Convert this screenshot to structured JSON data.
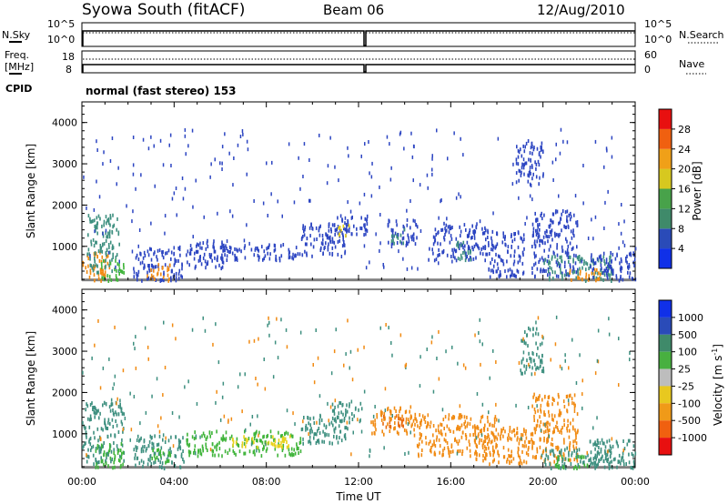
{
  "header": {
    "station": "Syowa South (fitACF)",
    "beam": "Beam 06",
    "date": "12/Aug/2010"
  },
  "status_panels": {
    "nsky_label": "N.Sky",
    "nsky_ticks": [
      "10^5",
      "10^0"
    ],
    "nsearch_label": "N.Search",
    "nsearch_ticks": [
      "10^5",
      "10^0"
    ],
    "freq_label_line1": "Freq.",
    "freq_label_line2": "[MHz]",
    "freq_ticks": [
      "18",
      "8"
    ],
    "nave_label": "Nave",
    "nave_ticks": [
      "60",
      "0"
    ],
    "cpid_label": "CPID",
    "cpid_text": "normal (fast stereo) 153"
  },
  "colors": {
    "blue": "#2c45c2",
    "darkblue": "#1e3aa8",
    "teal": "#3d8f7f",
    "green": "#3fb43a",
    "yellow": "#e9d21c",
    "orange": "#f18a12",
    "darkorange": "#e86a10",
    "red": "#e3131a",
    "grey": "#bdbdbd",
    "ground": "#808080"
  },
  "chart_data": [
    {
      "type": "heatmap",
      "title": "Power",
      "xlabel": "",
      "ylabel": "Slant Range [km]",
      "x_ticks": [
        "00:00",
        "04:00",
        "08:00",
        "12:00",
        "16:00",
        "20:00",
        "00:00"
      ],
      "y_ticks": [
        1000,
        2000,
        3000,
        4000
      ],
      "ylim": [
        180,
        4500
      ],
      "colorbar_label": "Power [dB]",
      "colorbar_ticks": [
        4,
        8,
        12,
        16,
        20,
        24,
        28
      ],
      "colorbar_colors": [
        "#1030e8",
        "#2a4bb8",
        "#3f8a6a",
        "#48a24a",
        "#d7c81f",
        "#f0a018",
        "#f06010",
        "#e81010"
      ],
      "regions": [
        {
          "t": [
            0.0,
            1.2
          ],
          "r": [
            200,
            900
          ],
          "c": "orange"
        },
        {
          "t": [
            0.2,
            1.6
          ],
          "r": [
            400,
            1800
          ],
          "c": "teal"
        },
        {
          "t": [
            0.8,
            1.8
          ],
          "r": [
            200,
            700
          ],
          "c": "green"
        },
        {
          "t": [
            2.2,
            4.4
          ],
          "r": [
            200,
            1000
          ],
          "c": "blue"
        },
        {
          "t": [
            2.8,
            3.8
          ],
          "r": [
            200,
            600
          ],
          "c": "orange"
        },
        {
          "t": [
            4.5,
            6.2
          ],
          "r": [
            500,
            1200
          ],
          "c": "blue"
        },
        {
          "t": [
            6.0,
            9.5
          ],
          "r": [
            700,
            1100
          ],
          "c": "blue"
        },
        {
          "t": [
            9.5,
            11.5
          ],
          "r": [
            800,
            1600
          ],
          "c": "blue"
        },
        {
          "t": [
            10.8,
            12.4
          ],
          "r": [
            1300,
            1800
          ],
          "c": "blue"
        },
        {
          "t": [
            11.1,
            11.6
          ],
          "r": [
            1300,
            1600
          ],
          "c": "yellow"
        },
        {
          "t": [
            13.2,
            14.6
          ],
          "r": [
            1100,
            1700
          ],
          "c": "blue"
        },
        {
          "t": [
            13.4,
            14.0
          ],
          "r": [
            1100,
            1500
          ],
          "c": "teal"
        },
        {
          "t": [
            15.0,
            17.5
          ],
          "r": [
            700,
            1600
          ],
          "c": "blue"
        },
        {
          "t": [
            16.2,
            16.9
          ],
          "r": [
            700,
            1200
          ],
          "c": "teal"
        },
        {
          "t": [
            17.5,
            19.2
          ],
          "r": [
            300,
            1400
          ],
          "c": "blue"
        },
        {
          "t": [
            18.8,
            20.0
          ],
          "r": [
            2500,
            3600
          ],
          "c": "blue"
        },
        {
          "t": [
            19.5,
            21.5
          ],
          "r": [
            300,
            1900
          ],
          "c": "blue"
        },
        {
          "t": [
            20.0,
            23.0
          ],
          "r": [
            200,
            800
          ],
          "c": "teal"
        },
        {
          "t": [
            21.0,
            22.5
          ],
          "r": [
            200,
            500
          ],
          "c": "orange"
        },
        {
          "t": [
            22.0,
            24.0
          ],
          "r": [
            200,
            900
          ],
          "c": "blue"
        }
      ]
    },
    {
      "type": "heatmap",
      "title": "Velocity",
      "xlabel": "Time UT",
      "ylabel": "Slant Range [km]",
      "x_ticks": [
        "00:00",
        "04:00",
        "08:00",
        "12:00",
        "16:00",
        "20:00",
        "00:00"
      ],
      "y_ticks": [
        1000,
        2000,
        3000,
        4000
      ],
      "ylim": [
        180,
        4500
      ],
      "colorbar_label": "Velocity [m s",
      "colorbar_units_sup": "-1",
      "colorbar_units_tail": "]",
      "colorbar_ticks": [
        "1000",
        "500",
        "100",
        "25",
        "-25",
        "-100",
        "-500",
        "-1000"
      ],
      "colorbar_colors": [
        "#1030e8",
        "#2a4bb8",
        "#3f8a6a",
        "#48b040",
        "#bdbdbd",
        "#e8c81f",
        "#f09a18",
        "#f06010",
        "#e81010"
      ],
      "regions": [
        {
          "t": [
            0.0,
            1.8
          ],
          "r": [
            300,
            1800
          ],
          "c": "teal"
        },
        {
          "t": [
            0.5,
            1.8
          ],
          "r": [
            200,
            800
          ],
          "c": "green"
        },
        {
          "t": [
            2.2,
            4.4
          ],
          "r": [
            200,
            1000
          ],
          "c": "teal"
        },
        {
          "t": [
            3.0,
            4.0
          ],
          "r": [
            300,
            700
          ],
          "c": "green"
        },
        {
          "t": [
            4.5,
            9.5
          ],
          "r": [
            500,
            1100
          ],
          "c": "green"
        },
        {
          "t": [
            6.5,
            9.0
          ],
          "r": [
            700,
            1000
          ],
          "c": "yellow"
        },
        {
          "t": [
            9.5,
            11.5
          ],
          "r": [
            800,
            1500
          ],
          "c": "teal"
        },
        {
          "t": [
            10.8,
            12.2
          ],
          "r": [
            1300,
            1800
          ],
          "c": "teal"
        },
        {
          "t": [
            12.5,
            14.5
          ],
          "r": [
            1000,
            1700
          ],
          "c": "orange"
        },
        {
          "t": [
            13.0,
            14.0
          ],
          "r": [
            1200,
            1500
          ],
          "c": "darkorange"
        },
        {
          "t": [
            14.5,
            18.0
          ],
          "r": [
            500,
            1500
          ],
          "c": "orange"
        },
        {
          "t": [
            17.0,
            19.5
          ],
          "r": [
            300,
            1200
          ],
          "c": "orange"
        },
        {
          "t": [
            19.0,
            20.0
          ],
          "r": [
            2500,
            3600
          ],
          "c": "teal"
        },
        {
          "t": [
            19.5,
            21.5
          ],
          "r": [
            300,
            2000
          ],
          "c": "orange"
        },
        {
          "t": [
            20.0,
            23.0
          ],
          "r": [
            200,
            700
          ],
          "c": "teal"
        },
        {
          "t": [
            20.5,
            22.0
          ],
          "r": [
            200,
            500
          ],
          "c": "green"
        },
        {
          "t": [
            22.0,
            24.0
          ],
          "r": [
            200,
            900
          ],
          "c": "teal"
        }
      ]
    }
  ]
}
